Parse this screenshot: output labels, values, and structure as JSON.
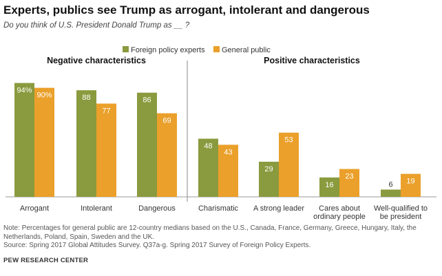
{
  "header": {
    "title": "Experts, publics see Trump as arrogant, intolerant and dangerous",
    "subtitle": "Do you think of U.S. President Donald Trump as __ ?"
  },
  "footer": {
    "note": "Note: Percentages for general public are 12-country medians based on the U.S., Canada, France, Germany, Greece, Hungary, Italy, the Netherlands, Poland, Spain, Sweden and the UK.",
    "source": "Source: Spring 2017 Global Attitudes Survey. Q37a-g. Spring 2017 Survey of Foreign Policy Experts.",
    "organization": "PEW RESEARCH CENTER"
  },
  "colors": {
    "foreign_policy_experts": "#8a9a3e",
    "general_public": "#eaa02a",
    "divider": "#888888",
    "baseline": "#999999"
  },
  "chart_data": {
    "type": "bar",
    "title": "Experts, publics see Trump as arrogant, intolerant and dangerous",
    "subtitle": "Do you think of U.S. President Donald Trump as __ ?",
    "legend_placement": "top-center",
    "ylim": [
      0,
      100
    ],
    "grid": false,
    "groups": [
      {
        "label": "Negative characteristics",
        "categories": [
          "Arrogant",
          "Intolerant",
          "Dangerous"
        ]
      },
      {
        "label": "Positive characteristics",
        "categories": [
          "Charismatic",
          "A strong leader",
          "Cares about ordinary people",
          "Well-qualified to be president"
        ]
      }
    ],
    "categories": [
      "Arrogant",
      "Intolerant",
      "Dangerous",
      "Charismatic",
      "A strong leader",
      "Cares about ordinary people",
      "Well-qualified to be president"
    ],
    "category_label_lines": [
      [
        "Arrogant"
      ],
      [
        "Intolerant"
      ],
      [
        "Dangerous"
      ],
      [
        "Charismatic"
      ],
      [
        "A strong leader"
      ],
      [
        "Cares about",
        "ordinary people"
      ],
      [
        "Well-qualified to",
        "be president"
      ]
    ],
    "series": [
      {
        "name": "Foreign policy experts",
        "values": [
          94,
          88,
          86,
          48,
          29,
          16,
          6
        ],
        "labels": [
          "94%",
          "88",
          "86",
          "48",
          "29",
          "16",
          "6"
        ]
      },
      {
        "name": "General public",
        "values": [
          90,
          77,
          69,
          43,
          53,
          23,
          19
        ],
        "labels": [
          "90%",
          "77",
          "69",
          "43",
          "53",
          "23",
          "19"
        ]
      }
    ]
  }
}
